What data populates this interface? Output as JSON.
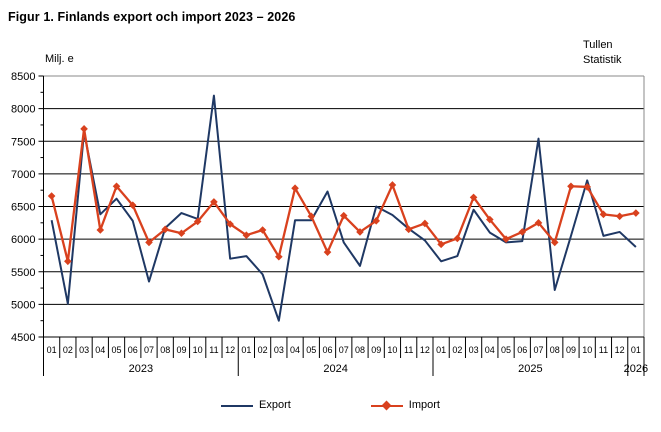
{
  "chart_data": {
    "type": "line",
    "title": "Figur 1. Finlands export och import 2023 – 2026",
    "unit_label": "Milj. e",
    "source_label_line1": "Tullen",
    "source_label_line2": "Statistik",
    "ylim": [
      4500,
      8500
    ],
    "y_ticks": [
      8500,
      8000,
      7500,
      7000,
      6500,
      6000,
      5500,
      5000,
      4500
    ],
    "grid": true,
    "legend_position": "bottom",
    "axis_color": "#000000",
    "frame_color": "#8a8a8a",
    "month_labels": [
      "01",
      "02",
      "03",
      "04",
      "05",
      "06",
      "07",
      "08",
      "09",
      "10",
      "11",
      "12",
      "01",
      "02",
      "03",
      "04",
      "05",
      "06",
      "07",
      "08",
      "09",
      "10",
      "11",
      "12",
      "01",
      "02",
      "03",
      "04",
      "05",
      "06",
      "07",
      "08",
      "09",
      "10",
      "11",
      "12",
      "01"
    ],
    "years": [
      {
        "label": "2023",
        "start": 0,
        "count": 12
      },
      {
        "label": "2024",
        "start": 12,
        "count": 12
      },
      {
        "label": "2025",
        "start": 24,
        "count": 12
      },
      {
        "label": "2026",
        "start": 36,
        "count": 1
      }
    ],
    "series": [
      {
        "name": "Export",
        "color": "#1F3864",
        "marker": "none",
        "values": [
          6290,
          5010,
          7640,
          6380,
          6620,
          6280,
          5350,
          6170,
          6400,
          6310,
          8200,
          5700,
          5740,
          5460,
          4750,
          6290,
          6290,
          6730,
          5950,
          5590,
          6500,
          6370,
          6160,
          5980,
          5660,
          5740,
          6450,
          6100,
          5950,
          5970,
          7540,
          5220,
          6050,
          6900,
          6050,
          6110,
          5880
        ]
      },
      {
        "name": "Import",
        "color": "#D9411E",
        "marker": "diamond",
        "values": [
          6660,
          5660,
          7690,
          6140,
          6810,
          6520,
          5950,
          6150,
          6090,
          6270,
          6570,
          6230,
          6060,
          6140,
          5730,
          6780,
          6350,
          5800,
          6360,
          6110,
          6280,
          6830,
          6150,
          6240,
          5920,
          6010,
          6640,
          6300,
          6000,
          6110,
          6250,
          5950,
          6810,
          6800,
          6380,
          6350,
          6400
        ]
      }
    ]
  }
}
